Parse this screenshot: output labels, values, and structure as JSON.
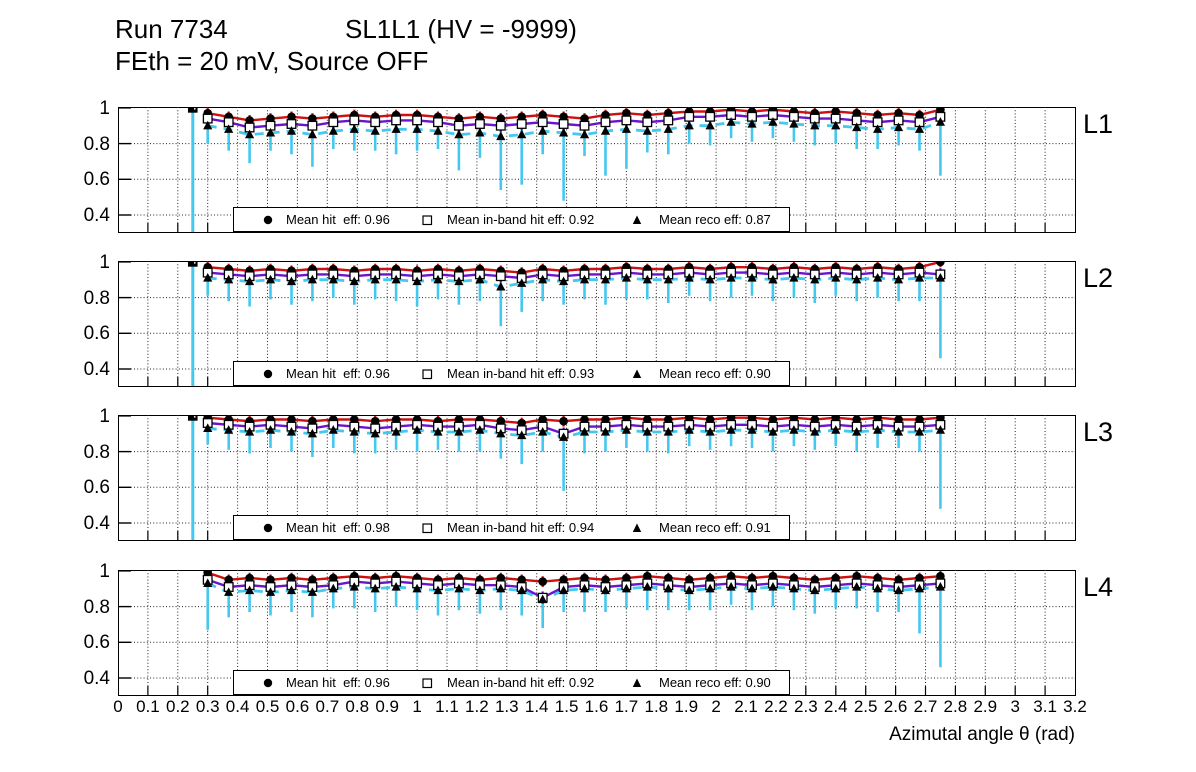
{
  "header": {
    "run": "Run 7734",
    "chamber": "SL1L1 (HV = -9999)",
    "condition": "FEth = 20 mV, Source OFF"
  },
  "x_axis": {
    "title": "Azimutal angle θ (rad)",
    "min": 0,
    "max": 3.2,
    "tick_labels": [
      "0",
      "0.1",
      "0.2",
      "0.3",
      "0.4",
      "0.5",
      "0.6",
      "0.7",
      "0.8",
      "0.9",
      "1",
      "1.1",
      "1.2",
      "1.3",
      "1.4",
      "1.5",
      "1.6",
      "1.7",
      "1.8",
      "1.9",
      "2",
      "2.1",
      "2.2",
      "2.3",
      "2.4",
      "2.5",
      "2.6",
      "2.7",
      "2.8",
      "2.9",
      "3",
      "3.1",
      "3.2"
    ]
  },
  "y_axis": {
    "min": 0.305,
    "max": 1.005,
    "ticks": [
      1,
      0.8,
      0.6,
      0.4
    ],
    "tick_labels": [
      "1",
      "0.8",
      "0.6",
      "0.4"
    ]
  },
  "colors": {
    "hit_line": "#cc1111",
    "inband_line": "#6a14cc",
    "reco_line": "#45c8f0",
    "marker": "#000000",
    "frame": "#000000",
    "grid": "#222222"
  },
  "chart_data": {
    "type": "line",
    "grid": true,
    "x": [
      0.3,
      0.37,
      0.44,
      0.51,
      0.58,
      0.65,
      0.72,
      0.79,
      0.86,
      0.93,
      1.0,
      1.07,
      1.14,
      1.21,
      1.28,
      1.35,
      1.42,
      1.49,
      1.56,
      1.63,
      1.7,
      1.77,
      1.84,
      1.91,
      1.98,
      2.05,
      2.12,
      2.19,
      2.26,
      2.33,
      2.4,
      2.47,
      2.54,
      2.61,
      2.68,
      2.75
    ],
    "series_names": [
      "Mean hit eff",
      "Mean in-band hit eff",
      "Mean reco eff"
    ],
    "panels": [
      {
        "label": "L1",
        "legend": {
          "hit": "Mean hit  eff: 0.96",
          "inband": "Mean in-band hit eff: 0.92",
          "reco": "Mean reco eff: 0.87"
        },
        "outlier": {
          "x": 0.25,
          "y": 1.0,
          "err": 0.75
        },
        "hit": [
          0.97,
          0.95,
          0.93,
          0.94,
          0.95,
          0.94,
          0.95,
          0.96,
          0.95,
          0.96,
          0.96,
          0.95,
          0.94,
          0.95,
          0.94,
          0.95,
          0.96,
          0.95,
          0.94,
          0.96,
          0.97,
          0.96,
          0.97,
          0.98,
          0.98,
          0.99,
          0.98,
          0.99,
          0.98,
          0.97,
          0.98,
          0.97,
          0.96,
          0.97,
          0.96,
          0.99
        ],
        "inband": [
          0.94,
          0.92,
          0.89,
          0.9,
          0.91,
          0.9,
          0.92,
          0.93,
          0.92,
          0.93,
          0.93,
          0.92,
          0.9,
          0.91,
          0.9,
          0.91,
          0.92,
          0.91,
          0.9,
          0.92,
          0.93,
          0.92,
          0.93,
          0.95,
          0.95,
          0.96,
          0.95,
          0.96,
          0.95,
          0.94,
          0.94,
          0.93,
          0.92,
          0.93,
          0.92,
          0.95
        ],
        "reco": [
          0.9,
          0.88,
          0.85,
          0.86,
          0.87,
          0.85,
          0.87,
          0.88,
          0.87,
          0.88,
          0.88,
          0.87,
          0.85,
          0.86,
          0.84,
          0.85,
          0.87,
          0.86,
          0.85,
          0.87,
          0.88,
          0.87,
          0.88,
          0.9,
          0.9,
          0.92,
          0.91,
          0.92,
          0.91,
          0.9,
          0.9,
          0.89,
          0.88,
          0.89,
          0.88,
          0.92
        ],
        "reco_err": [
          0.1,
          0.12,
          0.16,
          0.1,
          0.13,
          0.18,
          0.1,
          0.12,
          0.11,
          0.14,
          0.12,
          0.1,
          0.2,
          0.14,
          0.3,
          0.28,
          0.13,
          0.38,
          0.12,
          0.25,
          0.22,
          0.12,
          0.14,
          0.1,
          0.11,
          0.09,
          0.1,
          0.09,
          0.1,
          0.11,
          0.1,
          0.12,
          0.11,
          0.1,
          0.12,
          0.3
        ]
      },
      {
        "label": "L2",
        "legend": {
          "hit": "Mean hit  eff: 0.96",
          "inband": "Mean in-band hit eff: 0.93",
          "reco": "Mean reco eff: 0.90"
        },
        "outlier": {
          "x": 0.25,
          "y": 1.0,
          "err": 0.75
        },
        "hit": [
          0.97,
          0.96,
          0.95,
          0.96,
          0.95,
          0.96,
          0.96,
          0.95,
          0.96,
          0.96,
          0.95,
          0.96,
          0.95,
          0.96,
          0.95,
          0.94,
          0.96,
          0.95,
          0.96,
          0.96,
          0.97,
          0.96,
          0.96,
          0.97,
          0.96,
          0.97,
          0.97,
          0.96,
          0.97,
          0.96,
          0.97,
          0.96,
          0.97,
          0.96,
          0.97,
          1.0
        ],
        "inband": [
          0.94,
          0.93,
          0.92,
          0.93,
          0.92,
          0.93,
          0.93,
          0.92,
          0.93,
          0.93,
          0.92,
          0.93,
          0.92,
          0.93,
          0.92,
          0.91,
          0.93,
          0.92,
          0.93,
          0.93,
          0.94,
          0.93,
          0.93,
          0.94,
          0.93,
          0.94,
          0.94,
          0.93,
          0.94,
          0.93,
          0.94,
          0.93,
          0.94,
          0.93,
          0.94,
          0.93
        ],
        "reco": [
          0.91,
          0.9,
          0.89,
          0.9,
          0.89,
          0.9,
          0.9,
          0.89,
          0.9,
          0.9,
          0.89,
          0.9,
          0.89,
          0.9,
          0.86,
          0.88,
          0.9,
          0.89,
          0.9,
          0.9,
          0.91,
          0.9,
          0.9,
          0.91,
          0.9,
          0.91,
          0.91,
          0.9,
          0.91,
          0.9,
          0.91,
          0.9,
          0.91,
          0.9,
          0.91,
          0.91
        ],
        "reco_err": [
          0.1,
          0.12,
          0.14,
          0.11,
          0.13,
          0.12,
          0.1,
          0.13,
          0.11,
          0.12,
          0.14,
          0.11,
          0.13,
          0.12,
          0.22,
          0.16,
          0.12,
          0.13,
          0.11,
          0.14,
          0.12,
          0.11,
          0.13,
          0.1,
          0.12,
          0.11,
          0.1,
          0.12,
          0.11,
          0.13,
          0.1,
          0.12,
          0.11,
          0.12,
          0.13,
          0.45
        ]
      },
      {
        "label": "L3",
        "legend": {
          "hit": "Mean hit  eff: 0.98",
          "inband": "Mean in-band hit eff: 0.94",
          "reco": "Mean reco eff: 0.91"
        },
        "outlier": {
          "x": 0.25,
          "y": 1.0,
          "err": 0.75
        },
        "hit": [
          0.99,
          0.98,
          0.97,
          0.98,
          0.98,
          0.97,
          0.98,
          0.98,
          0.97,
          0.98,
          0.98,
          0.97,
          0.98,
          0.98,
          0.97,
          0.96,
          0.98,
          0.97,
          0.98,
          0.98,
          0.99,
          0.98,
          0.98,
          0.99,
          0.98,
          0.99,
          0.99,
          0.98,
          0.99,
          0.98,
          0.99,
          0.98,
          0.99,
          0.98,
          0.98,
          0.99
        ],
        "inband": [
          0.96,
          0.95,
          0.94,
          0.95,
          0.94,
          0.93,
          0.95,
          0.94,
          0.93,
          0.94,
          0.95,
          0.94,
          0.94,
          0.95,
          0.93,
          0.92,
          0.94,
          0.9,
          0.94,
          0.94,
          0.95,
          0.94,
          0.94,
          0.95,
          0.94,
          0.95,
          0.95,
          0.94,
          0.95,
          0.94,
          0.95,
          0.94,
          0.95,
          0.94,
          0.94,
          0.95
        ],
        "reco": [
          0.93,
          0.92,
          0.91,
          0.92,
          0.91,
          0.9,
          0.92,
          0.91,
          0.9,
          0.91,
          0.92,
          0.91,
          0.91,
          0.92,
          0.9,
          0.89,
          0.91,
          0.88,
          0.91,
          0.91,
          0.92,
          0.91,
          0.91,
          0.92,
          0.91,
          0.92,
          0.92,
          0.91,
          0.92,
          0.91,
          0.92,
          0.91,
          0.92,
          0.91,
          0.91,
          0.92
        ],
        "reco_err": [
          0.09,
          0.11,
          0.12,
          0.1,
          0.11,
          0.13,
          0.1,
          0.12,
          0.11,
          0.1,
          0.12,
          0.1,
          0.11,
          0.12,
          0.14,
          0.16,
          0.11,
          0.3,
          0.12,
          0.11,
          0.1,
          0.11,
          0.12,
          0.09,
          0.1,
          0.09,
          0.1,
          0.11,
          0.09,
          0.1,
          0.09,
          0.11,
          0.1,
          0.09,
          0.11,
          0.44
        ]
      },
      {
        "label": "L4",
        "legend": {
          "hit": "Mean hit  eff: 0.96",
          "inband": "Mean in-band hit eff: 0.92",
          "reco": "Mean reco eff: 0.90"
        },
        "outlier": null,
        "hit": [
          0.99,
          0.95,
          0.96,
          0.95,
          0.96,
          0.95,
          0.96,
          0.97,
          0.96,
          0.97,
          0.96,
          0.95,
          0.96,
          0.95,
          0.96,
          0.95,
          0.94,
          0.95,
          0.96,
          0.95,
          0.96,
          0.97,
          0.96,
          0.95,
          0.96,
          0.97,
          0.96,
          0.97,
          0.96,
          0.95,
          0.96,
          0.97,
          0.96,
          0.95,
          0.96,
          0.97
        ],
        "inband": [
          0.95,
          0.91,
          0.92,
          0.91,
          0.92,
          0.91,
          0.92,
          0.94,
          0.93,
          0.94,
          0.93,
          0.92,
          0.93,
          0.92,
          0.92,
          0.91,
          0.85,
          0.91,
          0.92,
          0.91,
          0.92,
          0.93,
          0.92,
          0.91,
          0.92,
          0.93,
          0.92,
          0.93,
          0.92,
          0.91,
          0.92,
          0.93,
          0.92,
          0.91,
          0.92,
          0.93
        ],
        "reco": [
          0.93,
          0.88,
          0.89,
          0.88,
          0.89,
          0.88,
          0.9,
          0.91,
          0.9,
          0.91,
          0.9,
          0.89,
          0.9,
          0.89,
          0.9,
          0.89,
          0.84,
          0.89,
          0.9,
          0.89,
          0.9,
          0.91,
          0.9,
          0.89,
          0.9,
          0.91,
          0.9,
          0.91,
          0.9,
          0.89,
          0.9,
          0.91,
          0.9,
          0.89,
          0.9,
          0.91
        ],
        "reco_err": [
          0.26,
          0.14,
          0.12,
          0.13,
          0.12,
          0.14,
          0.11,
          0.12,
          0.13,
          0.11,
          0.12,
          0.14,
          0.12,
          0.13,
          0.12,
          0.14,
          0.16,
          0.12,
          0.13,
          0.12,
          0.11,
          0.13,
          0.12,
          0.11,
          0.12,
          0.1,
          0.12,
          0.11,
          0.12,
          0.13,
          0.11,
          0.12,
          0.13,
          0.12,
          0.25,
          0.45
        ]
      }
    ],
    "hit_err": 0.03,
    "inband_err": 0.035,
    "panel_tops": [
      107,
      261,
      415,
      570
    ]
  }
}
